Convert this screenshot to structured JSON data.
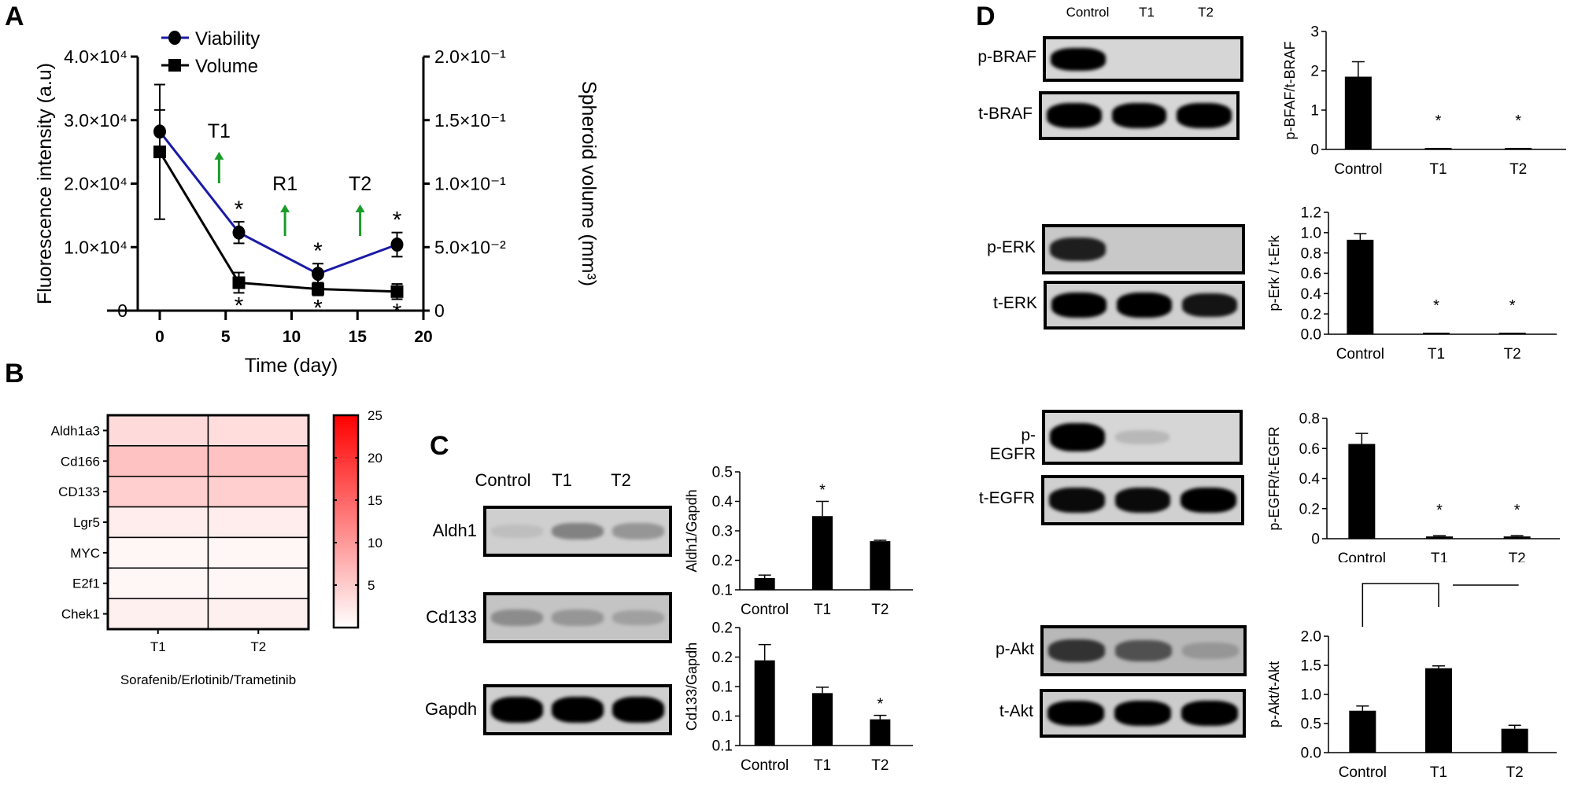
{
  "panels": {
    "A": {
      "letter": "A"
    },
    "B": {
      "letter": "B"
    },
    "C": {
      "letter": "C"
    },
    "D": {
      "letter": "D"
    }
  },
  "chart_data": [
    {
      "id": "A",
      "type": "line",
      "title": "",
      "xlabel": "Time (day)",
      "ylabel": "Fluorescence intensity (a.u)",
      "ylabel_right": "Spheroid volume (mm³)",
      "x_ticks": [
        "0",
        "5",
        "10",
        "15",
        "20"
      ],
      "xlim": [
        0,
        20
      ],
      "y_ticks_left": [
        "0",
        "1.0×10⁴",
        "2.0×10⁴",
        "3.0×10⁴",
        "4.0×10⁴"
      ],
      "ylim_left": [
        0,
        40000
      ],
      "y_ticks_right": [
        "0",
        "5.0×10⁻²",
        "1.0×10⁻¹",
        "1.5×10⁻¹",
        "2.0×10⁻¹"
      ],
      "ylim_right": [
        0,
        0.2
      ],
      "legend": [
        "Viability",
        "Volume"
      ],
      "series": [
        {
          "name": "Viability",
          "axis": "left",
          "color": "#1a1aa6",
          "marker": "circle",
          "x": [
            0,
            6,
            12,
            18
          ],
          "y": [
            28200,
            12300,
            5800,
            10400
          ],
          "err": [
            3400,
            1700,
            1600,
            1900
          ],
          "significant": [
            false,
            true,
            true,
            true
          ]
        },
        {
          "name": "Volume",
          "axis": "right",
          "color": "#000000",
          "marker": "square",
          "x": [
            0,
            6,
            12,
            18
          ],
          "y": [
            0.125,
            0.022,
            0.017,
            0.015
          ],
          "err": [
            0.053,
            0.008,
            0.005,
            0.006
          ],
          "significant": [
            false,
            true,
            true,
            true
          ]
        }
      ],
      "annotations": [
        {
          "label": "T1",
          "x": 4.5,
          "arrow_color": "#1a9c2a"
        },
        {
          "label": "R1",
          "x": 9.5,
          "arrow_color": "#1a9c2a"
        },
        {
          "label": "T2",
          "x": 15.2,
          "arrow_color": "#1a9c2a"
        }
      ]
    },
    {
      "id": "B",
      "type": "heatmap",
      "rows": [
        "Aldh1a3",
        "Cd166",
        "CD133",
        "Lgr5",
        "MYC",
        "E2f1",
        "Chek1"
      ],
      "columns": [
        "T1",
        "T2"
      ],
      "values": [
        [
          1.2,
          1.1
        ],
        [
          2.0,
          2.0
        ],
        [
          1.6,
          1.6
        ],
        [
          0.6,
          0.6
        ],
        [
          0.3,
          0.3
        ],
        [
          0.3,
          0.3
        ],
        [
          0.5,
          0.5
        ]
      ],
      "xlabel": "Sorafenib/Erlotinib/Trametinib",
      "colorbar": {
        "min": 0,
        "max": 25,
        "ticks": [
          "25",
          "20",
          "15",
          "10",
          "5"
        ],
        "color_max": "#ff0000",
        "color_min": "#ffffff"
      }
    },
    {
      "id": "C-Aldh1",
      "type": "bar",
      "categories": [
        "Control",
        "T1",
        "T2"
      ],
      "values": [
        0.14,
        0.35,
        0.265
      ],
      "err": [
        0.01,
        0.05,
        0.003
      ],
      "significant": [
        false,
        true,
        false
      ],
      "ylabel": "Aldh1/Gapdh",
      "y_ticks": [
        "0.1",
        "0.2",
        "0.3",
        "0.4",
        "0.5"
      ],
      "ylim": [
        0.1,
        0.5
      ]
    },
    {
      "id": "C-Cd133",
      "type": "bar",
      "categories": [
        "Control",
        "T1",
        "T2"
      ],
      "values": [
        0.145,
        0.12,
        0.1
      ],
      "err": [
        0.012,
        0.0045,
        0.003
      ],
      "significant": [
        false,
        false,
        true
      ],
      "ylabel": "Cd133/Gapdh",
      "y_ticks": [
        "0.1",
        "0.1",
        "0.1",
        "0.2",
        "0.2"
      ],
      "ylim": [
        0.08,
        0.17
      ]
    },
    {
      "id": "D-BRAF",
      "type": "bar",
      "categories": [
        "Control",
        "T1",
        "T2"
      ],
      "values": [
        1.85,
        0.02,
        0.02
      ],
      "err": [
        0.38,
        0,
        0
      ],
      "significant": [
        false,
        true,
        true
      ],
      "ylabel": "p-BFAF/t-BRAF",
      "y_ticks": [
        "0",
        "1",
        "2",
        "3"
      ],
      "ylim": [
        0,
        3
      ]
    },
    {
      "id": "D-ERK",
      "type": "bar",
      "categories": [
        "Control",
        "T1",
        "T2"
      ],
      "values": [
        0.93,
        0.01,
        0.01
      ],
      "err": [
        0.06,
        0,
        0
      ],
      "significant": [
        false,
        true,
        true
      ],
      "ylabel": "p-Erk / t-Erk",
      "y_ticks": [
        "0.0",
        "0.2",
        "0.4",
        "0.6",
        "0.8",
        "1.0",
        "1.2"
      ],
      "ylim": [
        0,
        1.2
      ]
    },
    {
      "id": "D-EGFR",
      "type": "bar",
      "categories": [
        "Control",
        "T1",
        "T2"
      ],
      "values": [
        0.63,
        0.015,
        0.015
      ],
      "err": [
        0.07,
        0.005,
        0.005
      ],
      "significant": [
        false,
        true,
        true
      ],
      "ylabel": "p-EGFR/t-EGFR",
      "y_ticks": [
        "0",
        "0.2",
        "0.4",
        "0.6",
        "0.8"
      ],
      "ylim": [
        0,
        0.8
      ]
    },
    {
      "id": "D-Akt",
      "type": "bar",
      "categories": [
        "Control",
        "T1",
        "T2"
      ],
      "values": [
        0.72,
        1.45,
        0.41
      ],
      "err": [
        0.08,
        0.04,
        0.06
      ],
      "significant": [
        false,
        false,
        false
      ],
      "brackets": [
        {
          "from": "Control",
          "to": "T1",
          "label": "*"
        },
        {
          "from": "T1",
          "to": "T2",
          "label": "*"
        }
      ],
      "ylabel": "p-Akt/t-Akt",
      "y_ticks": [
        "0.0",
        "0.5",
        "1.0",
        "1.5",
        "2.0"
      ],
      "ylim": [
        0,
        2.0
      ]
    }
  ],
  "blots": {
    "C": {
      "lanes": [
        "Control",
        "T1",
        "T2"
      ],
      "rows": [
        {
          "label": "Aldh1",
          "bands": [
            0.05,
            0.35,
            0.25
          ]
        },
        {
          "label": "Cd133",
          "bands": [
            0.3,
            0.25,
            0.2
          ]
        },
        {
          "label": "Gapdh",
          "bands": [
            1,
            1,
            1
          ]
        }
      ]
    },
    "D": {
      "lanes": [
        "Control",
        "T1",
        "T2"
      ],
      "rows": [
        {
          "label": "p-BRAF",
          "bands": [
            1,
            0,
            0
          ]
        },
        {
          "label": "t-BRAF",
          "bands": [
            1,
            1,
            1
          ]
        },
        {
          "label": "p-ERK",
          "bands": [
            0.85,
            0,
            0
          ]
        },
        {
          "label": "t-ERK",
          "bands": [
            1,
            1,
            0.9
          ]
        },
        {
          "label": "p-EGFR",
          "bands": [
            1,
            0.08,
            0
          ]
        },
        {
          "label": "t-EGFR",
          "bands": [
            0.95,
            0.95,
            1
          ]
        },
        {
          "label": "p-Akt",
          "bands": [
            0.75,
            0.6,
            0.25
          ]
        },
        {
          "label": "t-Akt",
          "bands": [
            1,
            1,
            1
          ]
        }
      ]
    }
  }
}
